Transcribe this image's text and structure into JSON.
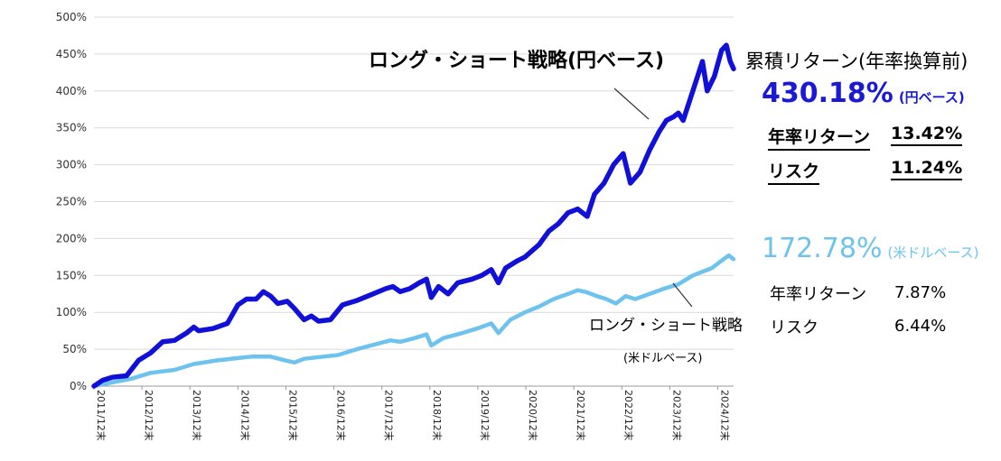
{
  "chart_data": {
    "type": "line",
    "title": "",
    "xlabel": "",
    "ylabel": "",
    "ylim": [
      0,
      500
    ],
    "yticks": [
      "0%",
      "50%",
      "100%",
      "150%",
      "200%",
      "250%",
      "300%",
      "350%",
      "400%",
      "450%",
      "500%"
    ],
    "categories": [
      "2011/12末",
      "2012/12末",
      "2013/12末",
      "2014/12末",
      "2015/12末",
      "2016/12末",
      "2017/12末",
      "2018/12末",
      "2019/12末",
      "2020/12末",
      "2021/12末",
      "2022/12末",
      "2023/12末",
      "2024/12末"
    ],
    "x_range": [
      2011.92,
      2025.25
    ],
    "series": [
      {
        "name": "ロング・ショート戦略(円ベース)",
        "color": "#1010d8",
        "points": [
          [
            2011.92,
            0
          ],
          [
            2012.1,
            8
          ],
          [
            2012.3,
            12
          ],
          [
            2012.6,
            14
          ],
          [
            2012.85,
            35
          ],
          [
            2013.1,
            45
          ],
          [
            2013.35,
            60
          ],
          [
            2013.6,
            62
          ],
          [
            2013.85,
            72
          ],
          [
            2014.0,
            80
          ],
          [
            2014.1,
            75
          ],
          [
            2014.4,
            78
          ],
          [
            2014.7,
            85
          ],
          [
            2014.92,
            110
          ],
          [
            2015.1,
            118
          ],
          [
            2015.3,
            118
          ],
          [
            2015.45,
            128
          ],
          [
            2015.6,
            122
          ],
          [
            2015.75,
            112
          ],
          [
            2015.95,
            115
          ],
          [
            2016.1,
            105
          ],
          [
            2016.3,
            90
          ],
          [
            2016.45,
            95
          ],
          [
            2016.6,
            88
          ],
          [
            2016.85,
            90
          ],
          [
            2017.1,
            110
          ],
          [
            2017.4,
            116
          ],
          [
            2017.7,
            124
          ],
          [
            2018.0,
            132
          ],
          [
            2018.15,
            135
          ],
          [
            2018.3,
            128
          ],
          [
            2018.5,
            132
          ],
          [
            2018.7,
            140
          ],
          [
            2018.85,
            145
          ],
          [
            2018.95,
            120
          ],
          [
            2019.1,
            135
          ],
          [
            2019.3,
            125
          ],
          [
            2019.5,
            140
          ],
          [
            2019.8,
            145
          ],
          [
            2020.0,
            150
          ],
          [
            2020.2,
            158
          ],
          [
            2020.35,
            140
          ],
          [
            2020.5,
            160
          ],
          [
            2020.75,
            170
          ],
          [
            2020.9,
            175
          ],
          [
            2021.2,
            192
          ],
          [
            2021.4,
            210
          ],
          [
            2021.6,
            220
          ],
          [
            2021.8,
            235
          ],
          [
            2022.0,
            240
          ],
          [
            2022.2,
            230
          ],
          [
            2022.35,
            260
          ],
          [
            2022.55,
            275
          ],
          [
            2022.75,
            300
          ],
          [
            2022.95,
            315
          ],
          [
            2023.1,
            275
          ],
          [
            2023.3,
            290
          ],
          [
            2023.5,
            320
          ],
          [
            2023.7,
            345
          ],
          [
            2023.85,
            360
          ],
          [
            2024.0,
            365
          ],
          [
            2024.1,
            370
          ],
          [
            2024.2,
            360
          ],
          [
            2024.4,
            400
          ],
          [
            2024.6,
            440
          ],
          [
            2024.7,
            400
          ],
          [
            2024.85,
            420
          ],
          [
            2025.0,
            455
          ],
          [
            2025.1,
            462
          ],
          [
            2025.18,
            440
          ],
          [
            2025.25,
            430
          ]
        ]
      },
      {
        "name": "ロング・ショート戦略(米ドルベース)",
        "color": "#6dc3ee",
        "points": [
          [
            2011.92,
            0
          ],
          [
            2012.3,
            5
          ],
          [
            2012.7,
            10
          ],
          [
            2013.1,
            18
          ],
          [
            2013.6,
            22
          ],
          [
            2014.0,
            30
          ],
          [
            2014.5,
            35
          ],
          [
            2014.92,
            38
          ],
          [
            2015.2,
            40
          ],
          [
            2015.6,
            40
          ],
          [
            2015.9,
            35
          ],
          [
            2016.1,
            32
          ],
          [
            2016.3,
            37
          ],
          [
            2016.7,
            40
          ],
          [
            2017.0,
            42
          ],
          [
            2017.4,
            50
          ],
          [
            2017.8,
            57
          ],
          [
            2018.1,
            62
          ],
          [
            2018.3,
            60
          ],
          [
            2018.6,
            65
          ],
          [
            2018.85,
            70
          ],
          [
            2018.95,
            55
          ],
          [
            2019.2,
            65
          ],
          [
            2019.6,
            72
          ],
          [
            2019.9,
            78
          ],
          [
            2020.2,
            85
          ],
          [
            2020.35,
            72
          ],
          [
            2020.6,
            90
          ],
          [
            2020.9,
            100
          ],
          [
            2021.2,
            108
          ],
          [
            2021.5,
            118
          ],
          [
            2021.8,
            125
          ],
          [
            2022.0,
            130
          ],
          [
            2022.2,
            127
          ],
          [
            2022.4,
            122
          ],
          [
            2022.6,
            118
          ],
          [
            2022.8,
            112
          ],
          [
            2023.0,
            122
          ],
          [
            2023.2,
            118
          ],
          [
            2023.5,
            125
          ],
          [
            2023.8,
            132
          ],
          [
            2024.1,
            138
          ],
          [
            2024.4,
            150
          ],
          [
            2024.6,
            155
          ],
          [
            2024.8,
            160
          ],
          [
            2025.0,
            170
          ],
          [
            2025.15,
            177
          ],
          [
            2025.25,
            172
          ]
        ]
      }
    ],
    "annotations": {
      "jpy_label": "ロング・ショート戦略(円ベース)",
      "usd_label": "ロング・ショート戦略",
      "usd_sublabel": "(米ドルベース)"
    }
  },
  "panel": {
    "heading": "累積リターン(年率換算前)",
    "jpy": {
      "total": "430.18%",
      "suffix": "(円ベース)",
      "annual_label": "年率リターン",
      "annual_value": "13.42%",
      "risk_label": "リスク",
      "risk_value": "11.24%"
    },
    "usd": {
      "total": "172.78%",
      "suffix": "(米ドルベース)",
      "annual_label": "年率リターン",
      "annual_value": "7.87%",
      "risk_label": "リスク",
      "risk_value": "6.44%"
    }
  }
}
